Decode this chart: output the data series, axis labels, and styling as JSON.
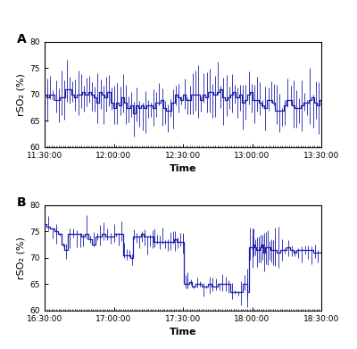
{
  "panel_A": {
    "start_time": "11:30:00",
    "end_time": "13:30:00",
    "x_ticks": [
      "11:30:00",
      "12:00:00",
      "12:30:00",
      "13:00:00",
      "13:30:00"
    ],
    "ylim": [
      60,
      80
    ],
    "yticks": [
      60,
      65,
      70,
      75,
      80
    ],
    "ylabel": "rSO₂ (%)",
    "xlabel": "Time",
    "label": "A"
  },
  "panel_B": {
    "start_time": "16:30:00",
    "end_time": "18:30:00",
    "x_ticks": [
      "16:30:00",
      "17:00:00",
      "17:30:00",
      "18:00:00",
      "18:30:00"
    ],
    "ylim": [
      60,
      80
    ],
    "yticks": [
      60,
      65,
      70,
      75,
      80
    ],
    "ylabel": "rSO₂ (%)",
    "xlabel": "Time",
    "label": "B"
  },
  "line_color": "#1a1aaa",
  "background_color": "#ffffff",
  "tick_fontsize": 6.5,
  "label_fontsize": 8,
  "panel_label_fontsize": 10
}
